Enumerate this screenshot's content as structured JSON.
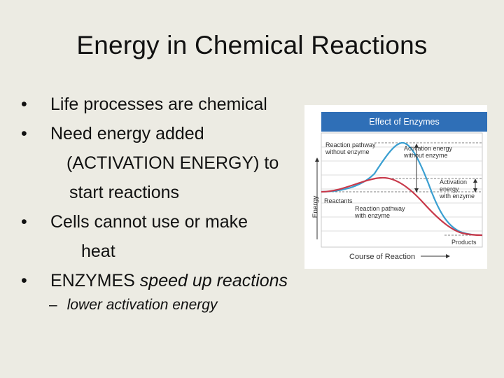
{
  "slide": {
    "title": "Energy in Chemical Reactions",
    "bullets": [
      {
        "text": "Life processes are chemical"
      },
      {
        "line1": "Need energy added",
        "line2": "(ACTIVATION ENERGY) to",
        "line3": "start reactions"
      },
      {
        "line1": "Cells cannot use or make",
        "line2": "heat"
      },
      {
        "normal": "ENZYMES ",
        "italic": "speed up reactions"
      }
    ],
    "bullet_glyph": "•",
    "sub_bullet": {
      "dash": "–",
      "text": "lower activation energy"
    }
  },
  "figure": {
    "title": "Effect of Enzymes",
    "labels": {
      "without_enzyme_pathway": [
        "Reaction pathway",
        "without enzyme"
      ],
      "activation_without": [
        "Activation energy",
        "without enzyme"
      ],
      "activation_with": [
        "Activation",
        "energy",
        "with enzyme"
      ],
      "reactants": "Reactants",
      "with_enzyme_pathway": [
        "Reaction pathway",
        "with enzyme"
      ],
      "products": "Products",
      "y_axis": "Energy",
      "x_axis": "Course of Reaction"
    },
    "colors": {
      "header": "#2f6fb7",
      "no_enzyme": "#3a9fd1",
      "with_enzyme": "#c8394a"
    }
  }
}
